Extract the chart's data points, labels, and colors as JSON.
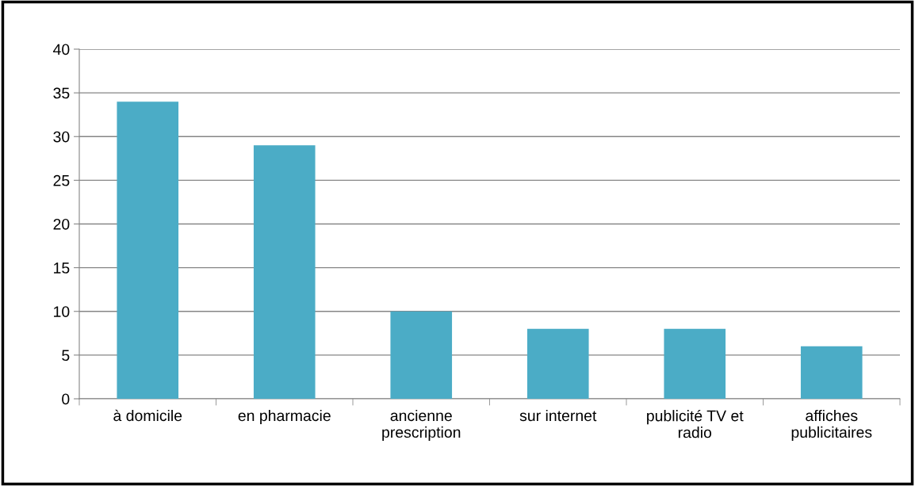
{
  "chart_data": {
    "type": "bar",
    "categories": [
      "à domicile",
      "en pharmacie",
      "ancienne\nprescription",
      "sur internet",
      "publicité TV et\nradio",
      "affiches\npublicitaires"
    ],
    "values": [
      34,
      29,
      10,
      8,
      8,
      6
    ],
    "color": "#4bacc6",
    "ylim": [
      0,
      40
    ],
    "yticks": [
      0,
      5,
      10,
      15,
      20,
      25,
      30,
      35,
      40
    ],
    "grid": "y",
    "legend": false
  }
}
